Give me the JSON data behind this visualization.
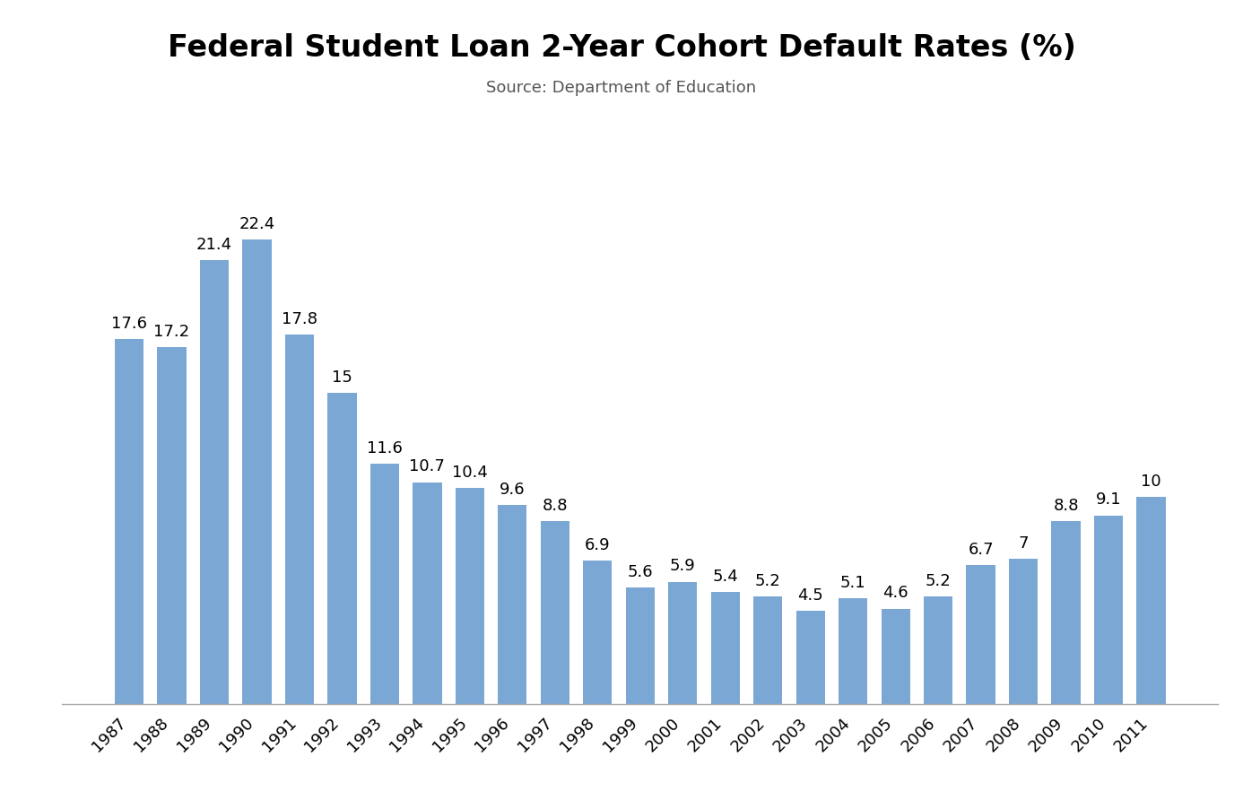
{
  "title": "Federal Student Loan 2-Year Cohort Default Rates (%)",
  "subtitle": "Source: Department of Education",
  "years": [
    "1987",
    "1988",
    "1989",
    "1990",
    "1991",
    "1992",
    "1993",
    "1994",
    "1995",
    "1996",
    "1997",
    "1998",
    "1999",
    "2000",
    "2001",
    "2002",
    "2003",
    "2004",
    "2005",
    "2006",
    "2007",
    "2008",
    "2009",
    "2010",
    "2011"
  ],
  "values": [
    17.6,
    17.2,
    21.4,
    22.4,
    17.8,
    15.0,
    11.6,
    10.7,
    10.4,
    9.6,
    8.8,
    6.9,
    5.6,
    5.9,
    5.4,
    5.2,
    4.5,
    5.1,
    4.6,
    5.2,
    6.7,
    7.0,
    8.8,
    9.1,
    10.0
  ],
  "labels": [
    "17.6",
    "17.2",
    "21.4",
    "22.4",
    "17.8",
    "15",
    "11.6",
    "10.7",
    "10.4",
    "9.6",
    "8.8",
    "6.9",
    "5.6",
    "5.9",
    "5.4",
    "5.2",
    "4.5",
    "5.1",
    "4.6",
    "5.2",
    "6.7",
    "7",
    "8.8",
    "9.1",
    "10"
  ],
  "bar_color": "#7BA7D4",
  "label_color": "#000000",
  "background_color": "#ffffff",
  "title_fontsize": 24,
  "subtitle_fontsize": 13,
  "label_fontsize": 13,
  "tick_fontsize": 13,
  "ylim": [
    0,
    27
  ],
  "bar_width": 0.68
}
